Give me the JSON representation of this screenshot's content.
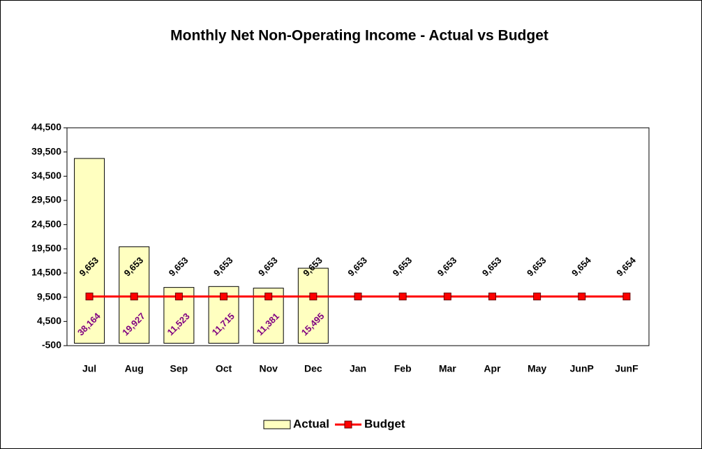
{
  "chart_data": {
    "type": "bar",
    "title": "Monthly Net Non-Operating Income - Actual vs Budget",
    "categories": [
      "Jul",
      "Aug",
      "Sep",
      "Oct",
      "Nov",
      "Dec",
      "Jan",
      "Feb",
      "Mar",
      "Apr",
      "May",
      "JunP",
      "JunF"
    ],
    "series": [
      {
        "name": "Actual",
        "type": "bar",
        "color": "#ffffc0",
        "label_color": "#800080",
        "values": [
          38164,
          19927,
          11523,
          11715,
          11381,
          15495,
          null,
          null,
          null,
          null,
          null,
          null,
          null
        ],
        "value_labels": [
          "38,164",
          "19,927",
          "11,523",
          "11,715",
          "11,381",
          "15,495",
          null,
          null,
          null,
          null,
          null,
          null,
          null
        ]
      },
      {
        "name": "Budget",
        "type": "line",
        "color": "#ff0000",
        "label_color": "#000000",
        "values": [
          9653,
          9653,
          9653,
          9653,
          9653,
          9653,
          9653,
          9653,
          9653,
          9653,
          9653,
          9654,
          9654
        ],
        "value_labels": [
          "9,653",
          "9,653",
          "9,653",
          "9,653",
          "9,653",
          "9,653",
          "9,653",
          "9,653",
          "9,653",
          "9,653",
          "9,653",
          "9,654",
          "9,654"
        ]
      }
    ],
    "ylim": [
      -500,
      44500
    ],
    "yticks": [
      -500,
      {
        "value": 4500,
        "label": "4,500"
      },
      {
        "value": 9500,
        "label": "9,500"
      },
      {
        "value": 14500,
        "label": "14,500"
      },
      {
        "value": 19500,
        "label": "19,500"
      },
      {
        "value": 24500,
        "label": "24,500"
      },
      {
        "value": 29500,
        "label": "29,500"
      },
      {
        "value": 34500,
        "label": "34,500"
      },
      {
        "value": 39500,
        "label": "39,500"
      },
      {
        "value": 44500,
        "label": "44,500"
      }
    ],
    "grid": false,
    "legend": "bottom"
  }
}
